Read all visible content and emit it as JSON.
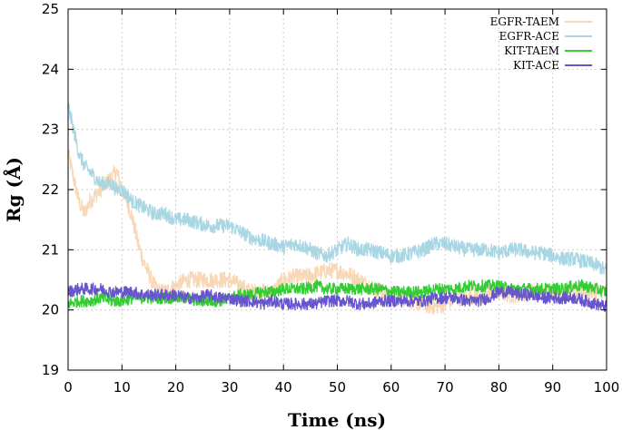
{
  "chart_data": {
    "type": "line",
    "title": "",
    "xlabel": "Time (ns)",
    "ylabel": "Rg (Å)",
    "xlim": [
      0,
      100
    ],
    "ylim": [
      19,
      25
    ],
    "xticks": [
      0,
      10,
      20,
      30,
      40,
      50,
      60,
      70,
      80,
      90,
      100
    ],
    "yticks": [
      19,
      20,
      21,
      22,
      23,
      24,
      25
    ],
    "grid": true,
    "legend_position": "top-right",
    "series": [
      {
        "name": "EGFR-TAEM",
        "color": "#f8d7b4",
        "x": [
          0,
          1,
          2,
          3,
          4,
          5,
          6,
          7,
          8,
          9,
          10,
          11,
          12,
          13,
          14,
          15,
          16,
          17,
          18,
          20,
          22,
          24,
          26,
          28,
          30,
          32,
          34,
          36,
          38,
          40,
          42,
          44,
          46,
          48,
          50,
          52,
          54,
          56,
          58,
          60,
          62,
          64,
          66,
          68,
          70,
          72,
          74,
          76,
          78,
          80,
          82,
          84,
          86,
          88,
          90,
          92,
          94,
          96,
          98,
          100
        ],
        "y": [
          22.6,
          22.2,
          21.8,
          21.6,
          21.8,
          21.9,
          22.0,
          22.1,
          22.2,
          22.3,
          22.0,
          21.8,
          21.5,
          21.1,
          20.8,
          20.6,
          20.4,
          20.3,
          20.3,
          20.4,
          20.5,
          20.5,
          20.5,
          20.5,
          20.5,
          20.4,
          20.3,
          20.3,
          20.3,
          20.5,
          20.55,
          20.55,
          20.6,
          20.65,
          20.65,
          20.6,
          20.5,
          20.4,
          20.3,
          20.2,
          20.2,
          20.15,
          20.1,
          20.05,
          20.1,
          20.2,
          20.2,
          20.25,
          20.25,
          20.3,
          20.25,
          20.25,
          20.3,
          20.3,
          20.3,
          20.3,
          20.3,
          20.3,
          20.3,
          20.3
        ]
      },
      {
        "name": "EGFR-ACE",
        "color": "#a9d6e3",
        "x": [
          0,
          1,
          2,
          3,
          4,
          5,
          6,
          7,
          8,
          9,
          10,
          11,
          12,
          14,
          16,
          18,
          20,
          22,
          24,
          26,
          28,
          30,
          32,
          34,
          36,
          38,
          40,
          42,
          44,
          46,
          48,
          50,
          52,
          54,
          56,
          58,
          60,
          62,
          64,
          66,
          68,
          70,
          72,
          74,
          76,
          78,
          80,
          82,
          84,
          86,
          88,
          90,
          92,
          94,
          96,
          98,
          100
        ],
        "y": [
          23.4,
          23.0,
          22.6,
          22.4,
          22.3,
          22.2,
          22.1,
          22.1,
          22.1,
          22.0,
          22.0,
          21.9,
          21.8,
          21.7,
          21.6,
          21.6,
          21.5,
          21.5,
          21.45,
          21.4,
          21.4,
          21.4,
          21.3,
          21.2,
          21.15,
          21.1,
          21.05,
          21.1,
          21.05,
          20.95,
          20.9,
          21.0,
          21.1,
          21.0,
          21.0,
          20.95,
          20.9,
          20.9,
          20.95,
          21.0,
          21.1,
          21.1,
          21.05,
          21.0,
          21.0,
          21.0,
          20.95,
          21.0,
          21.0,
          20.95,
          20.95,
          20.9,
          20.85,
          20.85,
          20.8,
          20.75,
          20.65
        ]
      },
      {
        "name": "KIT-TAEM",
        "color": "#33cc33",
        "x": [
          0,
          2,
          4,
          6,
          8,
          10,
          12,
          14,
          16,
          18,
          20,
          22,
          24,
          26,
          28,
          30,
          32,
          34,
          36,
          38,
          40,
          42,
          44,
          46,
          48,
          50,
          52,
          54,
          56,
          58,
          60,
          62,
          64,
          66,
          68,
          70,
          72,
          74,
          76,
          78,
          80,
          82,
          84,
          86,
          88,
          90,
          92,
          94,
          96,
          98,
          100
        ],
        "y": [
          20.1,
          20.15,
          20.15,
          20.2,
          20.15,
          20.15,
          20.2,
          20.2,
          20.2,
          20.2,
          20.2,
          20.2,
          20.15,
          20.15,
          20.15,
          20.2,
          20.25,
          20.25,
          20.3,
          20.3,
          20.35,
          20.35,
          20.35,
          20.4,
          20.35,
          20.35,
          20.35,
          20.35,
          20.35,
          20.35,
          20.3,
          20.3,
          20.3,
          20.3,
          20.35,
          20.35,
          20.35,
          20.4,
          20.4,
          20.4,
          20.4,
          20.35,
          20.35,
          20.35,
          20.35,
          20.35,
          20.35,
          20.4,
          20.4,
          20.35,
          20.3
        ]
      },
      {
        "name": "KIT-ACE",
        "color": "#6655cc",
        "x": [
          0,
          2,
          4,
          6,
          8,
          10,
          12,
          14,
          16,
          18,
          20,
          22,
          24,
          26,
          28,
          30,
          32,
          34,
          36,
          38,
          40,
          42,
          44,
          46,
          48,
          50,
          52,
          54,
          56,
          58,
          60,
          62,
          64,
          66,
          68,
          70,
          72,
          74,
          76,
          78,
          80,
          82,
          84,
          86,
          88,
          90,
          92,
          94,
          96,
          98,
          100
        ],
        "y": [
          20.3,
          20.35,
          20.35,
          20.35,
          20.3,
          20.3,
          20.3,
          20.25,
          20.25,
          20.25,
          20.25,
          20.2,
          20.2,
          20.25,
          20.2,
          20.2,
          20.15,
          20.15,
          20.1,
          20.15,
          20.1,
          20.1,
          20.1,
          20.1,
          20.15,
          20.15,
          20.15,
          20.1,
          20.1,
          20.15,
          20.15,
          20.15,
          20.15,
          20.15,
          20.2,
          20.2,
          20.2,
          20.15,
          20.15,
          20.2,
          20.3,
          20.3,
          20.25,
          20.25,
          20.2,
          20.2,
          20.2,
          20.2,
          20.15,
          20.1,
          20.05
        ]
      }
    ]
  }
}
